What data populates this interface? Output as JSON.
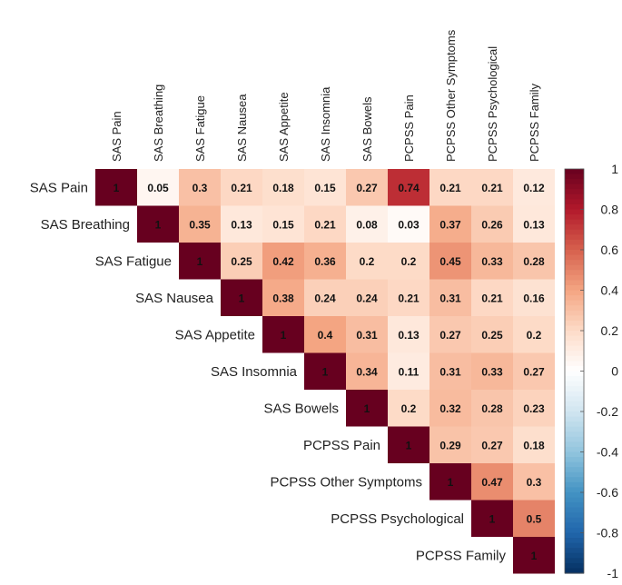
{
  "chart_data": {
    "type": "heatmap",
    "variables": [
      "SAS Pain",
      "SAS Breathing",
      "SAS Fatigue",
      "SAS Nausea",
      "SAS Appetite",
      "SAS Insomnia",
      "SAS Bowels",
      "PCPSS Pain",
      "PCPSS Other Symptoms",
      "PCPSS Psychological",
      "PCPSS Family"
    ],
    "matrix": [
      [
        1,
        0.05,
        0.3,
        0.21,
        0.18,
        0.15,
        0.27,
        0.74,
        0.21,
        0.21,
        0.12
      ],
      [
        null,
        1,
        0.35,
        0.13,
        0.15,
        0.21,
        0.08,
        0.03,
        0.37,
        0.26,
        0.13
      ],
      [
        null,
        null,
        1,
        0.25,
        0.42,
        0.36,
        0.2,
        0.2,
        0.45,
        0.33,
        0.28
      ],
      [
        null,
        null,
        null,
        1,
        0.38,
        0.24,
        0.24,
        0.21,
        0.31,
        0.21,
        0.16
      ],
      [
        null,
        null,
        null,
        null,
        1,
        0.4,
        0.31,
        0.13,
        0.27,
        0.25,
        0.2
      ],
      [
        null,
        null,
        null,
        null,
        null,
        1,
        0.34,
        0.11,
        0.31,
        0.33,
        0.27
      ],
      [
        null,
        null,
        null,
        null,
        null,
        null,
        1,
        0.2,
        0.32,
        0.28,
        0.23
      ],
      [
        null,
        null,
        null,
        null,
        null,
        null,
        null,
        1,
        0.29,
        0.27,
        0.18
      ],
      [
        null,
        null,
        null,
        null,
        null,
        null,
        null,
        null,
        1,
        0.47,
        0.3
      ],
      [
        null,
        null,
        null,
        null,
        null,
        null,
        null,
        null,
        null,
        1,
        0.5
      ],
      [
        null,
        null,
        null,
        null,
        null,
        null,
        null,
        null,
        null,
        null,
        1
      ]
    ],
    "colorbar": {
      "range": [
        -1,
        1
      ],
      "ticks": [
        1,
        0.8,
        0.6,
        0.4,
        0.2,
        0,
        -0.2,
        -0.4,
        -0.6,
        -0.8,
        -1
      ],
      "tick_labels": [
        "1",
        "0.8",
        "0.6",
        "0.4",
        "0.2",
        "0",
        "-0.2",
        "-0.4",
        "-0.6",
        "-0.8",
        "-1"
      ],
      "colors": {
        "positive": "#67001f",
        "mid": "#ffffff",
        "negative": "#053061"
      }
    }
  }
}
